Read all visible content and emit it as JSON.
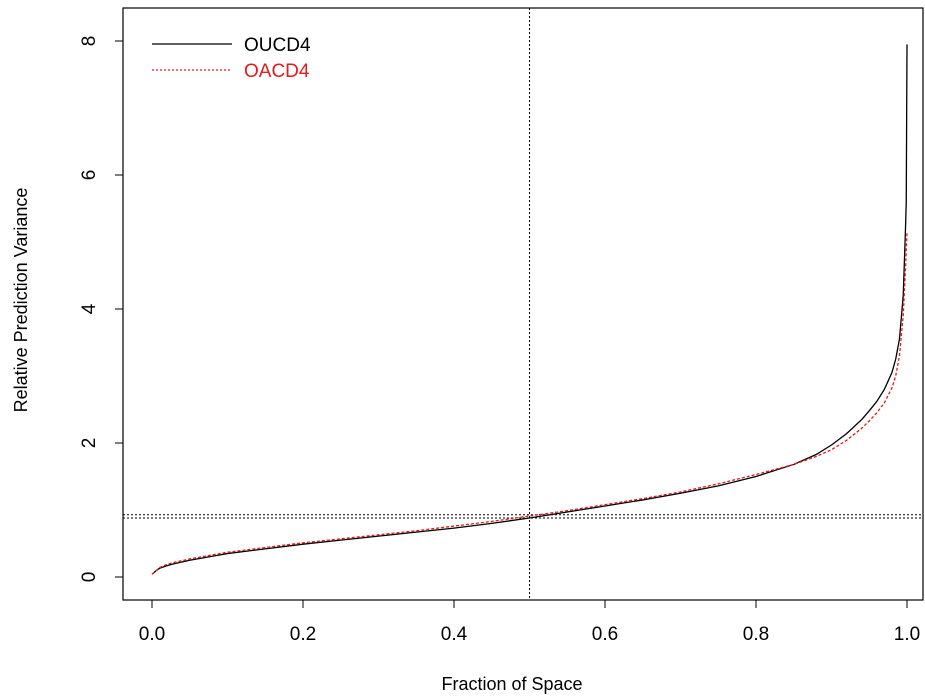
{
  "chart_data": {
    "type": "line",
    "title": "",
    "xlabel": "Fraction of Space",
    "ylabel": "Relative Prediction Variance",
    "xlim": [
      0.0,
      1.0
    ],
    "ylim": [
      0,
      8
    ],
    "x_ticks": [
      "0.0",
      "0.2",
      "0.4",
      "0.6",
      "0.8",
      "1.0"
    ],
    "y_ticks": [
      "0",
      "2",
      "4",
      "6",
      "8"
    ],
    "grid": false,
    "legend_position": "top-left",
    "reference_lines": {
      "vertical_x": 0.5,
      "horizontal_y": [
        0.88,
        0.93
      ]
    },
    "series": [
      {
        "name": "OUCD4",
        "color": "#000000",
        "line_style": "solid",
        "x": [
          0.0,
          0.005,
          0.01,
          0.02,
          0.03,
          0.05,
          0.08,
          0.1,
          0.15,
          0.2,
          0.25,
          0.3,
          0.35,
          0.4,
          0.45,
          0.5,
          0.55,
          0.6,
          0.65,
          0.7,
          0.75,
          0.8,
          0.85,
          0.88,
          0.9,
          0.92,
          0.94,
          0.95,
          0.96,
          0.97,
          0.98,
          0.985,
          0.99,
          0.995,
          0.998,
          0.999,
          1.0
        ],
        "y": [
          0.04,
          0.09,
          0.13,
          0.17,
          0.2,
          0.25,
          0.31,
          0.35,
          0.42,
          0.49,
          0.55,
          0.61,
          0.67,
          0.73,
          0.8,
          0.88,
          0.97,
          1.06,
          1.15,
          1.25,
          1.36,
          1.5,
          1.68,
          1.83,
          1.97,
          2.14,
          2.35,
          2.48,
          2.62,
          2.8,
          3.05,
          3.25,
          3.55,
          4.2,
          5.2,
          5.6,
          7.95
        ]
      },
      {
        "name": "OACD4",
        "color": "#e41a1c",
        "line_style": "dashed",
        "x": [
          0.0,
          0.005,
          0.01,
          0.02,
          0.03,
          0.05,
          0.08,
          0.1,
          0.15,
          0.2,
          0.25,
          0.3,
          0.35,
          0.4,
          0.45,
          0.5,
          0.55,
          0.6,
          0.65,
          0.7,
          0.75,
          0.8,
          0.85,
          0.88,
          0.9,
          0.92,
          0.94,
          0.95,
          0.96,
          0.97,
          0.98,
          0.985,
          0.99,
          0.995,
          0.998,
          1.0
        ],
        "y": [
          0.04,
          0.09,
          0.14,
          0.19,
          0.22,
          0.27,
          0.33,
          0.37,
          0.44,
          0.51,
          0.57,
          0.63,
          0.69,
          0.76,
          0.83,
          0.91,
          0.99,
          1.08,
          1.17,
          1.27,
          1.39,
          1.53,
          1.68,
          1.8,
          1.9,
          2.04,
          2.22,
          2.33,
          2.45,
          2.6,
          2.82,
          3.0,
          3.3,
          3.9,
          4.6,
          5.15
        ]
      }
    ]
  }
}
